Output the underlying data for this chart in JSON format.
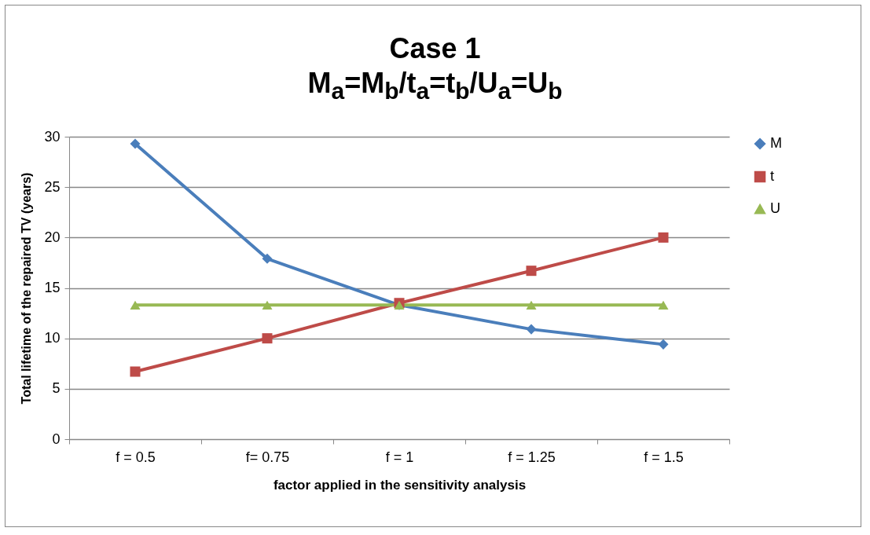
{
  "chart_data": {
    "type": "line",
    "title": "Case 1",
    "subtitle": "M$_{a}$=M$_{b}$/t$_{a}$=t$_{b}$/U$_{a}$=U$_{b}$",
    "xlabel": "factor applied in the sensitivity analysis",
    "ylabel": "Total lifetime of the repaired TV (years)",
    "categories": [
      "f = 0.5",
      "f= 0.75",
      "f = 1",
      "f = 1.25",
      "f = 1.5"
    ],
    "series": [
      {
        "name": "M",
        "color": "#4a7ebb",
        "marker": "diamond",
        "values": [
          29.3,
          17.9,
          13.3,
          10.9,
          9.4
        ]
      },
      {
        "name": "t",
        "color": "#be4b48",
        "marker": "square",
        "values": [
          6.7,
          10.0,
          13.5,
          16.7,
          20.0
        ]
      },
      {
        "name": "U",
        "color": "#98b954",
        "marker": "triangle",
        "values": [
          13.3,
          13.3,
          13.3,
          13.3,
          13.3
        ]
      }
    ],
    "ylim": [
      0,
      30
    ],
    "yticks": [
      0,
      5,
      10,
      15,
      20,
      25,
      30
    ],
    "grid": "y",
    "legend": "right",
    "line_style": "solid"
  }
}
